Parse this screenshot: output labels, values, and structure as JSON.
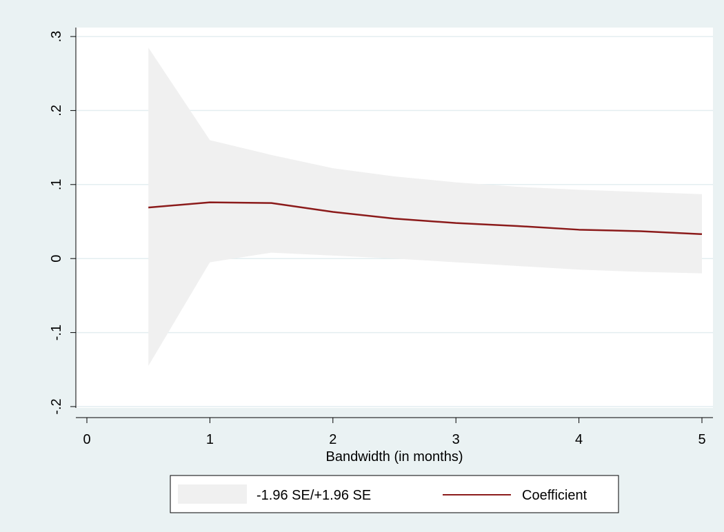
{
  "chart_data": {
    "type": "area",
    "title": "",
    "xlabel": "Bandwidth (in months)",
    "ylabel": "",
    "xlim": [
      0,
      5
    ],
    "ylim": [
      -0.2,
      0.3
    ],
    "xticks": [
      0,
      1,
      2,
      3,
      4,
      5
    ],
    "xtick_labels": [
      "0",
      "1",
      "2",
      "3",
      "4",
      "5"
    ],
    "yticks": [
      -0.2,
      -0.1,
      0,
      0.1,
      0.2,
      0.3
    ],
    "ytick_labels": [
      "-.2",
      "-.1",
      "0",
      ".1",
      ".2",
      ".3"
    ],
    "grid": true,
    "legend_position": "bottom",
    "x": [
      0.5,
      1,
      1.5,
      2,
      2.5,
      3,
      3.5,
      4,
      4.5,
      5
    ],
    "series": [
      {
        "name": "-1.96 SE/+1.96 SE",
        "kind": "band",
        "color": "#f0f0f0",
        "lower": [
          -0.145,
          -0.005,
          0.008,
          0.004,
          0.0,
          -0.005,
          -0.01,
          -0.015,
          -0.018,
          -0.02
        ],
        "upper": [
          0.285,
          0.16,
          0.14,
          0.122,
          0.111,
          0.103,
          0.097,
          0.093,
          0.09,
          0.087
        ]
      },
      {
        "name": "Coefficient",
        "kind": "line",
        "color": "#8b1a1a",
        "values": [
          0.069,
          0.076,
          0.075,
          0.063,
          0.054,
          0.048,
          0.044,
          0.039,
          0.037,
          0.033
        ]
      }
    ]
  }
}
